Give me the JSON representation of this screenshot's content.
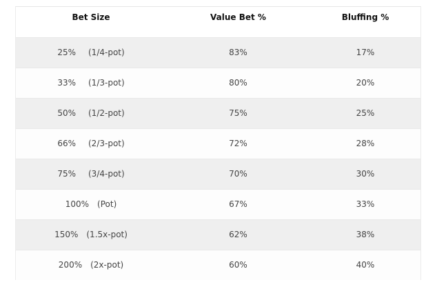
{
  "table": {
    "headers": [
      "Bet Size",
      "Value Bet %",
      "Bluffing %"
    ],
    "rows": [
      {
        "bet_pct": "25%",
        "bet_frac": "(1/4-pot)",
        "value": "83%",
        "bluff": "17%"
      },
      {
        "bet_pct": "33%",
        "bet_frac": "(1/3-pot)",
        "value": "80%",
        "bluff": "20%"
      },
      {
        "bet_pct": "50%",
        "bet_frac": "(1/2-pot)",
        "value": "75%",
        "bluff": "25%"
      },
      {
        "bet_pct": "66%",
        "bet_frac": "(2/3-pot)",
        "value": "72%",
        "bluff": "28%"
      },
      {
        "bet_pct": "75%",
        "bet_frac": "(3/4-pot)",
        "value": "70%",
        "bluff": "30%"
      },
      {
        "bet_pct": "100%",
        "bet_frac": "(Pot)",
        "value": "67%",
        "bluff": "33%"
      },
      {
        "bet_pct": "150%",
        "bet_frac": "(1.5x-pot)",
        "value": "62%",
        "bluff": "38%"
      },
      {
        "bet_pct": "200%",
        "bet_frac": "(2x-pot)",
        "value": "60%",
        "bluff": "40%"
      }
    ]
  }
}
